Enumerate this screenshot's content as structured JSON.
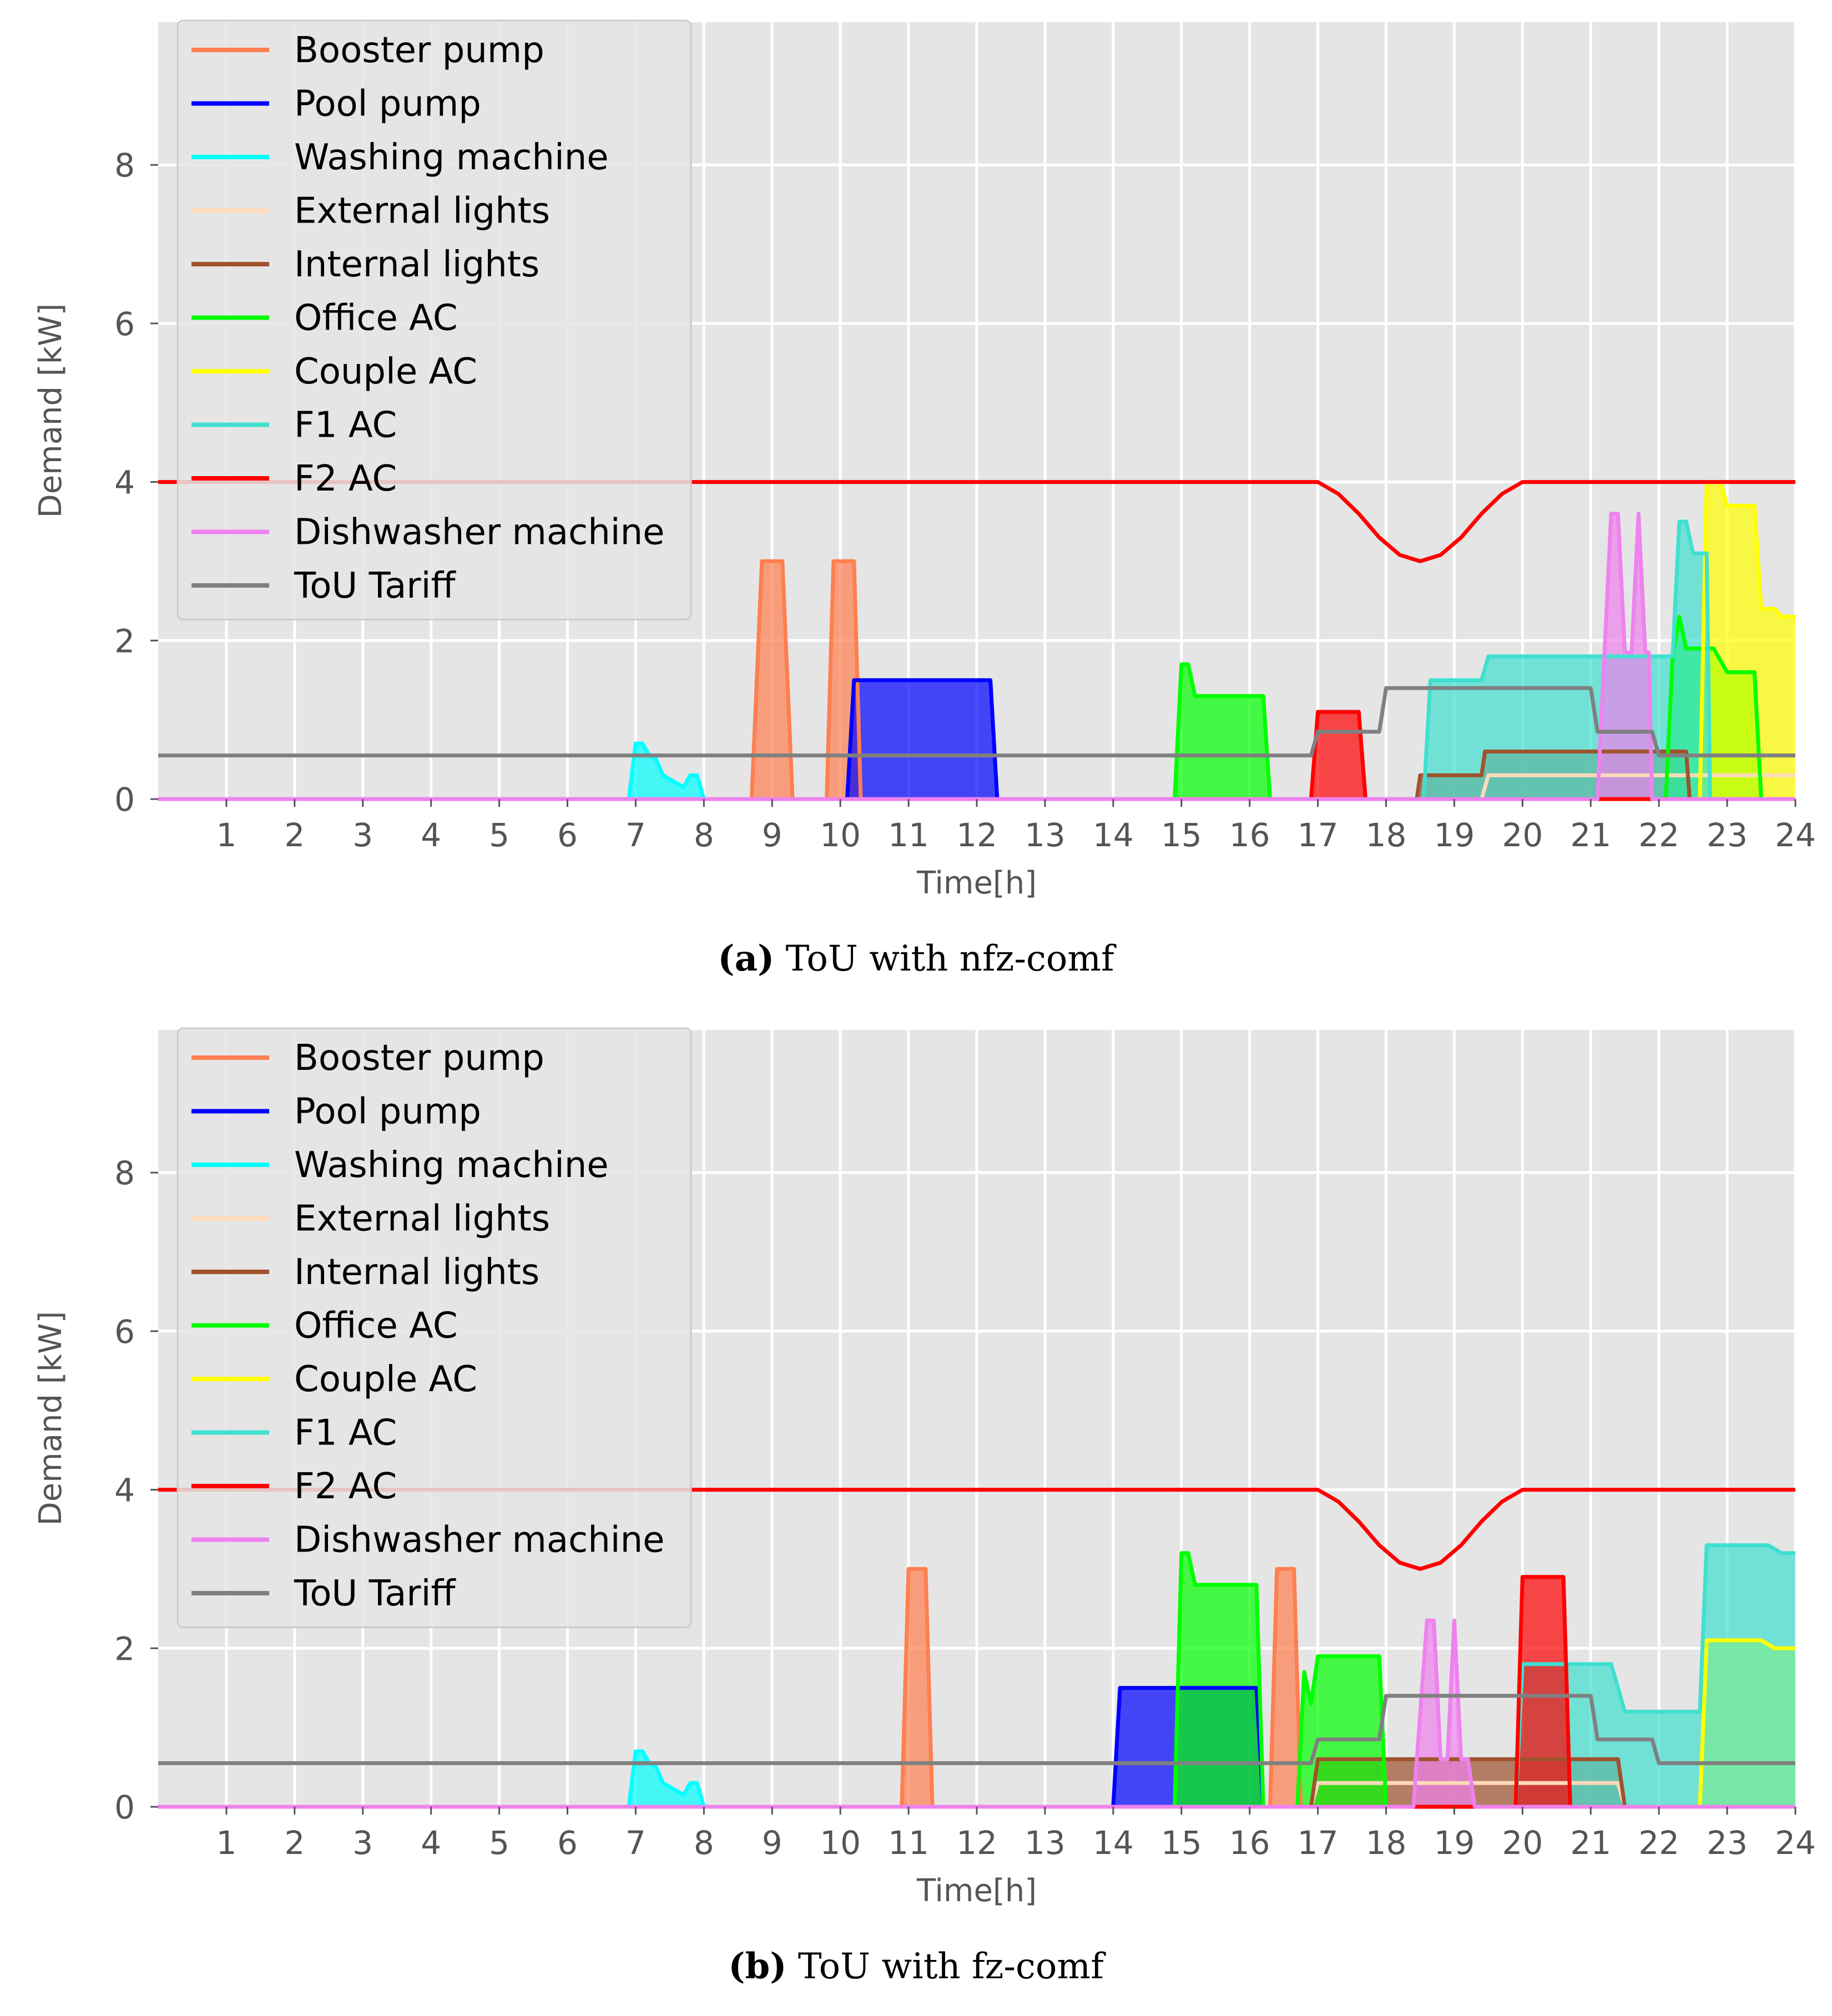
{
  "chart_data": [
    {
      "type": "area",
      "xlabel": "Time[h]",
      "ylabel": "Demand [kW]",
      "xlim": [
        0,
        24
      ],
      "ylim": [
        0,
        9.8
      ],
      "xticks": [
        1,
        2,
        3,
        4,
        5,
        6,
        7,
        8,
        9,
        10,
        11,
        12,
        13,
        14,
        15,
        16,
        17,
        18,
        19,
        20,
        21,
        22,
        23,
        24
      ],
      "yticks": [
        0,
        2,
        4,
        6,
        8
      ],
      "grid": true,
      "legend_position": "top-left",
      "caption_label": "(a)",
      "caption_text": "ToU with nfz-comf",
      "series": [
        {
          "name": "Booster pump",
          "color": "#ff7f50",
          "fill": true,
          "points": [
            [
              0,
              0
            ],
            [
              8.7,
              0
            ],
            [
              8.85,
              3
            ],
            [
              9.15,
              3
            ],
            [
              9.3,
              0
            ],
            [
              9.8,
              0
            ],
            [
              9.9,
              3
            ],
            [
              10.2,
              3
            ],
            [
              10.3,
              0
            ],
            [
              24,
              0
            ]
          ]
        },
        {
          "name": "Pool pump",
          "color": "#0000ff",
          "fill": true,
          "points": [
            [
              0,
              0
            ],
            [
              10.1,
              0
            ],
            [
              10.2,
              1.5
            ],
            [
              12.2,
              1.5
            ],
            [
              12.3,
              0
            ],
            [
              24,
              0
            ]
          ]
        },
        {
          "name": "Washing machine",
          "color": "#00ffff",
          "fill": true,
          "points": [
            [
              0,
              0
            ],
            [
              6.9,
              0
            ],
            [
              7.0,
              0.7
            ],
            [
              7.1,
              0.7
            ],
            [
              7.2,
              0.55
            ],
            [
              7.3,
              0.5
            ],
            [
              7.4,
              0.3
            ],
            [
              7.5,
              0.25
            ],
            [
              7.6,
              0.2
            ],
            [
              7.7,
              0.15
            ],
            [
              7.8,
              0.3
            ],
            [
              7.9,
              0.3
            ],
            [
              8.0,
              0
            ],
            [
              24,
              0
            ]
          ]
        },
        {
          "name": "External lights",
          "color": "#ffdab9",
          "fill": false,
          "points": [
            [
              0,
              0
            ],
            [
              19.4,
              0
            ],
            [
              19.5,
              0.3
            ],
            [
              24,
              0.3
            ]
          ]
        },
        {
          "name": "Internal lights",
          "color": "#a0522d",
          "fill": true,
          "points": [
            [
              0,
              0
            ],
            [
              18.45,
              0
            ],
            [
              18.5,
              0.3
            ],
            [
              19.4,
              0.3
            ],
            [
              19.45,
              0.6
            ],
            [
              22.4,
              0.6
            ],
            [
              22.45,
              0
            ],
            [
              24,
              0
            ]
          ]
        },
        {
          "name": "Office AC",
          "color": "#00ff00",
          "fill": true,
          "points": [
            [
              0,
              0
            ],
            [
              14.9,
              0
            ],
            [
              15.0,
              1.7
            ],
            [
              15.1,
              1.7
            ],
            [
              15.2,
              1.3
            ],
            [
              16.2,
              1.3
            ],
            [
              16.3,
              0
            ],
            [
              22.1,
              0
            ],
            [
              22.2,
              1.8
            ],
            [
              22.3,
              2.3
            ],
            [
              22.4,
              1.9
            ],
            [
              22.8,
              1.9
            ],
            [
              23.0,
              1.6
            ],
            [
              23.4,
              1.6
            ],
            [
              23.5,
              0
            ],
            [
              24,
              0
            ]
          ]
        },
        {
          "name": "Couple AC",
          "color": "#ffff00",
          "fill": true,
          "points": [
            [
              0,
              0
            ],
            [
              22.6,
              0
            ],
            [
              22.7,
              4.0
            ],
            [
              22.9,
              4.0
            ],
            [
              23.0,
              3.7
            ],
            [
              23.4,
              3.7
            ],
            [
              23.5,
              2.4
            ],
            [
              23.7,
              2.4
            ],
            [
              23.8,
              2.3
            ],
            [
              24,
              2.3
            ]
          ]
        },
        {
          "name": "F1 AC",
          "color": "#40e0d0",
          "fill": true,
          "points": [
            [
              0,
              0
            ],
            [
              18.55,
              0
            ],
            [
              18.65,
              1.5
            ],
            [
              19.4,
              1.5
            ],
            [
              19.5,
              1.8
            ],
            [
              22.2,
              1.8
            ],
            [
              22.3,
              3.5
            ],
            [
              22.4,
              3.5
            ],
            [
              22.5,
              3.1
            ],
            [
              22.7,
              3.1
            ],
            [
              22.75,
              0
            ],
            [
              24,
              0
            ]
          ]
        },
        {
          "name": "F2 AC",
          "color": "#ff0000",
          "fill": true,
          "points": [
            [
              0,
              0
            ],
            [
              16.9,
              0
            ],
            [
              17.0,
              1.1
            ],
            [
              17.6,
              1.1
            ],
            [
              17.7,
              0
            ],
            [
              24,
              0
            ]
          ]
        },
        {
          "name": "Dishwasher machine",
          "color": "#ee82ee",
          "fill": true,
          "points": [
            [
              0,
              0
            ],
            [
              21.1,
              0
            ],
            [
              21.3,
              3.6
            ],
            [
              21.4,
              3.6
            ],
            [
              21.5,
              1.85
            ],
            [
              21.6,
              1.85
            ],
            [
              21.7,
              3.6
            ],
            [
              21.8,
              1.85
            ],
            [
              21.85,
              1.85
            ],
            [
              21.9,
              0
            ],
            [
              24,
              0
            ]
          ]
        },
        {
          "name": "ToU Tariff",
          "color": "#808080",
          "fill": false,
          "points": [
            [
              0,
              0.55
            ],
            [
              16.9,
              0.55
            ],
            [
              17.0,
              0.85
            ],
            [
              17.9,
              0.85
            ],
            [
              18.0,
              1.4
            ],
            [
              21.0,
              1.4
            ],
            [
              21.1,
              0.85
            ],
            [
              21.9,
              0.85
            ],
            [
              22.0,
              0.55
            ],
            [
              24,
              0.55
            ]
          ]
        }
      ],
      "limit_line": {
        "color": "#ff0000",
        "points": [
          [
            0,
            4
          ],
          [
            17.0,
            4
          ],
          [
            17.3,
            3.85
          ],
          [
            17.6,
            3.6
          ],
          [
            17.9,
            3.3
          ],
          [
            18.2,
            3.08
          ],
          [
            18.5,
            3.0
          ],
          [
            18.8,
            3.08
          ],
          [
            19.1,
            3.3
          ],
          [
            19.4,
            3.6
          ],
          [
            19.7,
            3.85
          ],
          [
            20.0,
            4
          ],
          [
            24,
            4
          ]
        ]
      }
    },
    {
      "type": "area",
      "xlabel": "Time[h]",
      "ylabel": "Demand [kW]",
      "xlim": [
        0,
        24
      ],
      "ylim": [
        0,
        9.8
      ],
      "xticks": [
        1,
        2,
        3,
        4,
        5,
        6,
        7,
        8,
        9,
        10,
        11,
        12,
        13,
        14,
        15,
        16,
        17,
        18,
        19,
        20,
        21,
        22,
        23,
        24
      ],
      "yticks": [
        0,
        2,
        4,
        6,
        8
      ],
      "grid": true,
      "legend_position": "top-left",
      "caption_label": "(b)",
      "caption_text": "ToU with fz-comf",
      "series": [
        {
          "name": "Booster pump",
          "color": "#ff7f50",
          "fill": true,
          "points": [
            [
              0,
              0
            ],
            [
              10.9,
              0
            ],
            [
              11.0,
              3
            ],
            [
              11.25,
              3
            ],
            [
              11.35,
              0
            ],
            [
              16.3,
              0
            ],
            [
              16.4,
              3
            ],
            [
              16.65,
              3
            ],
            [
              16.75,
              0
            ],
            [
              24,
              0
            ]
          ]
        },
        {
          "name": "Pool pump",
          "color": "#0000ff",
          "fill": true,
          "points": [
            [
              0,
              0
            ],
            [
              14.0,
              0
            ],
            [
              14.1,
              1.5
            ],
            [
              16.1,
              1.5
            ],
            [
              16.2,
              0
            ],
            [
              24,
              0
            ]
          ]
        },
        {
          "name": "Washing machine",
          "color": "#00ffff",
          "fill": true,
          "points": [
            [
              0,
              0
            ],
            [
              6.9,
              0
            ],
            [
              7.0,
              0.7
            ],
            [
              7.1,
              0.7
            ],
            [
              7.2,
              0.55
            ],
            [
              7.3,
              0.5
            ],
            [
              7.4,
              0.3
            ],
            [
              7.5,
              0.25
            ],
            [
              7.6,
              0.2
            ],
            [
              7.7,
              0.15
            ],
            [
              7.8,
              0.3
            ],
            [
              7.9,
              0.3
            ],
            [
              8.0,
              0
            ],
            [
              24,
              0
            ]
          ]
        },
        {
          "name": "External lights",
          "color": "#ffdab9",
          "fill": false,
          "points": [
            [
              0,
              0
            ],
            [
              16.9,
              0
            ],
            [
              17.0,
              0.3
            ],
            [
              21.4,
              0.3
            ],
            [
              21.5,
              0
            ],
            [
              24,
              0
            ]
          ]
        },
        {
          "name": "Internal lights",
          "color": "#a0522d",
          "fill": true,
          "points": [
            [
              0,
              0
            ],
            [
              16.9,
              0
            ],
            [
              17.0,
              0.6
            ],
            [
              21.4,
              0.6
            ],
            [
              21.5,
              0
            ],
            [
              24,
              0
            ]
          ]
        },
        {
          "name": "Office AC",
          "color": "#00ff00",
          "fill": true,
          "points": [
            [
              0,
              0
            ],
            [
              14.9,
              0
            ],
            [
              15.0,
              3.2
            ],
            [
              15.1,
              3.2
            ],
            [
              15.2,
              2.8
            ],
            [
              16.1,
              2.8
            ],
            [
              16.2,
              0
            ],
            [
              16.7,
              0
            ],
            [
              16.8,
              1.7
            ],
            [
              16.9,
              1.3
            ],
            [
              17.0,
              1.9
            ],
            [
              17.9,
              1.9
            ],
            [
              18.0,
              0
            ],
            [
              24,
              0
            ]
          ]
        },
        {
          "name": "Couple AC",
          "color": "#ffff00",
          "fill": true,
          "points": [
            [
              0,
              0
            ],
            [
              22.6,
              0
            ],
            [
              22.7,
              2.1
            ],
            [
              23.5,
              2.1
            ],
            [
              23.7,
              2.0
            ],
            [
              24,
              2.0
            ]
          ]
        },
        {
          "name": "F1 AC",
          "color": "#40e0d0",
          "fill": true,
          "points": [
            [
              0,
              0
            ],
            [
              19.9,
              0
            ],
            [
              20.0,
              1.8
            ],
            [
              21.3,
              1.8
            ],
            [
              21.5,
              1.2
            ],
            [
              22.6,
              1.2
            ],
            [
              22.7,
              3.3
            ],
            [
              23.6,
              3.3
            ],
            [
              23.8,
              3.2
            ],
            [
              24,
              3.2
            ]
          ]
        },
        {
          "name": "F2 AC",
          "color": "#ff0000",
          "fill": true,
          "points": [
            [
              0,
              0
            ],
            [
              19.9,
              0
            ],
            [
              20.0,
              2.9
            ],
            [
              20.6,
              2.9
            ],
            [
              20.7,
              0
            ],
            [
              24,
              0
            ]
          ]
        },
        {
          "name": "Dishwasher machine",
          "color": "#ee82ee",
          "fill": true,
          "points": [
            [
              0,
              0
            ],
            [
              18.4,
              0
            ],
            [
              18.6,
              2.35
            ],
            [
              18.7,
              2.35
            ],
            [
              18.8,
              0.6
            ],
            [
              18.9,
              0.6
            ],
            [
              19.0,
              2.35
            ],
            [
              19.1,
              0.6
            ],
            [
              19.2,
              0.6
            ],
            [
              19.3,
              0
            ],
            [
              24,
              0
            ]
          ]
        },
        {
          "name": "ToU Tariff",
          "color": "#808080",
          "fill": false,
          "points": [
            [
              0,
              0.55
            ],
            [
              16.9,
              0.55
            ],
            [
              17.0,
              0.85
            ],
            [
              17.9,
              0.85
            ],
            [
              18.0,
              1.4
            ],
            [
              21.0,
              1.4
            ],
            [
              21.1,
              0.85
            ],
            [
              21.9,
              0.85
            ],
            [
              22.0,
              0.55
            ],
            [
              24,
              0.55
            ]
          ]
        }
      ],
      "limit_line": {
        "color": "#ff0000",
        "points": [
          [
            0,
            4
          ],
          [
            17.0,
            4
          ],
          [
            17.3,
            3.85
          ],
          [
            17.6,
            3.6
          ],
          [
            17.9,
            3.3
          ],
          [
            18.2,
            3.08
          ],
          [
            18.5,
            3.0
          ],
          [
            18.8,
            3.08
          ],
          [
            19.1,
            3.3
          ],
          [
            19.4,
            3.6
          ],
          [
            19.7,
            3.85
          ],
          [
            20.0,
            4
          ],
          [
            24,
            4
          ]
        ]
      }
    }
  ]
}
